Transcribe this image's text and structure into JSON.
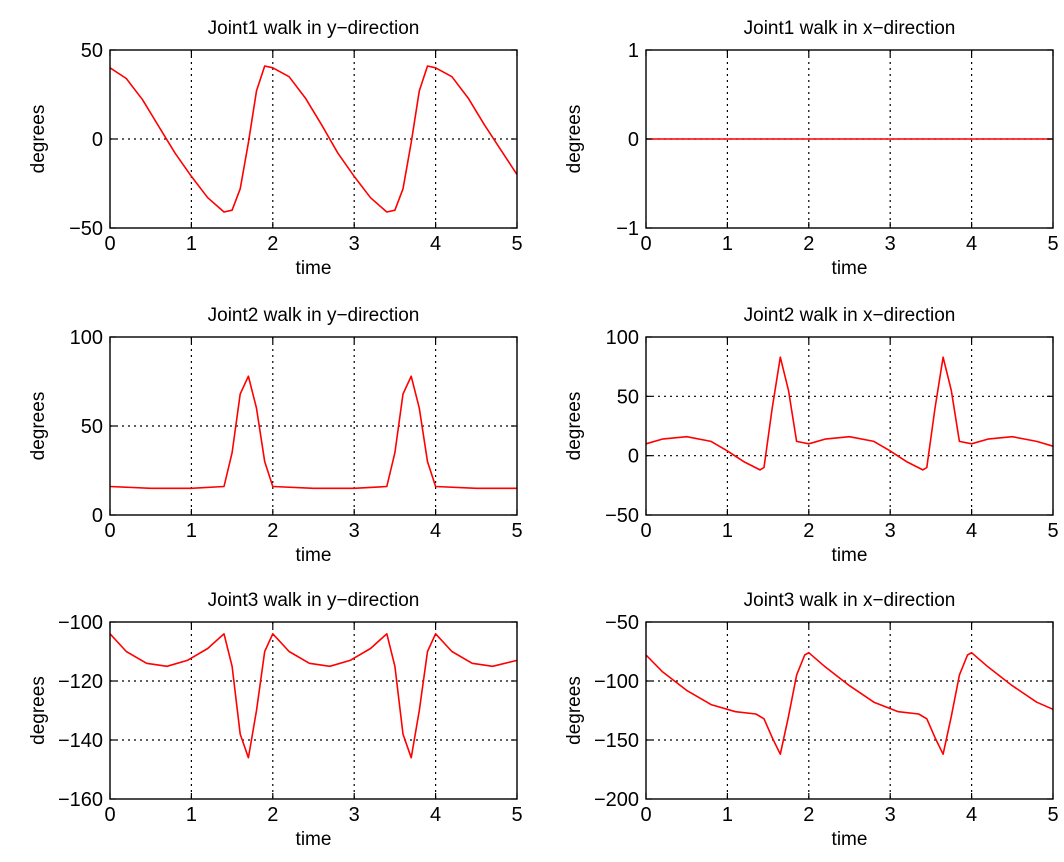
{
  "chart_data": [
    {
      "type": "line",
      "title": "Joint1 walk in y−direction",
      "xlabel": "time",
      "ylabel": "degrees",
      "xlim": [
        0,
        5
      ],
      "ylim": [
        -50,
        50
      ],
      "xticks": [
        "0",
        "1",
        "2",
        "3",
        "4",
        "5"
      ],
      "yticks": [
        "−50",
        "0",
        "50"
      ],
      "grid": true,
      "line_color": "#ff0000",
      "x": [
        0,
        0.2,
        0.4,
        0.6,
        0.8,
        1.0,
        1.2,
        1.4,
        1.5,
        1.6,
        1.7,
        1.8,
        1.9,
        2.0,
        2.2,
        2.4,
        2.6,
        2.8,
        3.0,
        3.2,
        3.4,
        3.5,
        3.6,
        3.7,
        3.8,
        3.9,
        4.0,
        4.2,
        4.4,
        4.6,
        4.8,
        5.0
      ],
      "y": [
        40,
        34,
        22,
        7,
        -8,
        -21,
        -33,
        -41,
        -40,
        -28,
        -2,
        27,
        41,
        40,
        35,
        23,
        8,
        -8,
        -21,
        -33,
        -41,
        -40,
        -28,
        -2,
        27,
        41,
        40,
        35,
        23,
        8,
        -6,
        -20
      ]
    },
    {
      "type": "line",
      "title": "Joint1 walk in x−direction",
      "xlabel": "time",
      "ylabel": "degrees",
      "xlim": [
        0,
        5
      ],
      "ylim": [
        -1,
        1
      ],
      "xticks": [
        "0",
        "1",
        "2",
        "3",
        "4",
        "5"
      ],
      "yticks": [
        "−1",
        "0",
        "1"
      ],
      "grid": true,
      "line_color": "#ff0000",
      "x": [
        0,
        5
      ],
      "y": [
        0,
        0
      ]
    },
    {
      "type": "line",
      "title": "Joint2 walk in y−direction",
      "xlabel": "time",
      "ylabel": "degrees",
      "xlim": [
        0,
        5
      ],
      "ylim": [
        0,
        100
      ],
      "xticks": [
        "0",
        "1",
        "2",
        "3",
        "4",
        "5"
      ],
      "yticks": [
        "0",
        "50",
        "100"
      ],
      "grid": true,
      "line_color": "#ff0000",
      "x": [
        0,
        0.5,
        1.0,
        1.4,
        1.5,
        1.6,
        1.7,
        1.8,
        1.9,
        2.0,
        2.5,
        3.0,
        3.4,
        3.5,
        3.6,
        3.7,
        3.8,
        3.9,
        4.0,
        4.5,
        5.0
      ],
      "y": [
        16,
        15,
        15,
        16,
        35,
        68,
        78,
        60,
        30,
        16,
        15,
        15,
        16,
        35,
        68,
        78,
        60,
        30,
        16,
        15,
        15
      ]
    },
    {
      "type": "line",
      "title": "Joint2 walk in x−direction",
      "xlabel": "time",
      "ylabel": "degrees",
      "xlim": [
        0,
        5
      ],
      "ylim": [
        -50,
        100
      ],
      "xticks": [
        "0",
        "1",
        "2",
        "3",
        "4",
        "5"
      ],
      "yticks": [
        "−50",
        "0",
        "50",
        "100"
      ],
      "grid": true,
      "line_color": "#ff0000",
      "x": [
        0,
        0.2,
        0.5,
        0.8,
        1.0,
        1.2,
        1.4,
        1.45,
        1.55,
        1.65,
        1.75,
        1.85,
        2.0,
        2.2,
        2.5,
        2.8,
        3.0,
        3.2,
        3.4,
        3.45,
        3.55,
        3.65,
        3.75,
        3.85,
        4.0,
        4.2,
        4.5,
        4.8,
        5.0
      ],
      "y": [
        10,
        14,
        16,
        12,
        4,
        -5,
        -12,
        -10,
        40,
        83,
        55,
        12,
        10,
        14,
        16,
        12,
        4,
        -5,
        -12,
        -10,
        40,
        83,
        55,
        12,
        10,
        14,
        16,
        12,
        8
      ]
    },
    {
      "type": "line",
      "title": "Joint3 walk in y−direction",
      "xlabel": "time",
      "ylabel": "degrees",
      "xlim": [
        0,
        5
      ],
      "ylim": [
        -160,
        -100
      ],
      "xticks": [
        "0",
        "1",
        "2",
        "3",
        "4",
        "5"
      ],
      "yticks": [
        "−160",
        "−140",
        "−120",
        "−100"
      ],
      "grid": true,
      "line_color": "#ff0000",
      "x": [
        0,
        0.2,
        0.45,
        0.7,
        0.95,
        1.2,
        1.4,
        1.5,
        1.6,
        1.7,
        1.8,
        1.9,
        2.0,
        2.2,
        2.45,
        2.7,
        2.95,
        3.2,
        3.4,
        3.5,
        3.6,
        3.7,
        3.8,
        3.9,
        4.0,
        4.2,
        4.45,
        4.7,
        5.0
      ],
      "y": [
        -104,
        -110,
        -114,
        -115,
        -113,
        -109,
        -104,
        -115,
        -138,
        -146,
        -130,
        -110,
        -104,
        -110,
        -114,
        -115,
        -113,
        -109,
        -104,
        -115,
        -138,
        -146,
        -130,
        -110,
        -104,
        -110,
        -114,
        -115,
        -113
      ]
    },
    {
      "type": "line",
      "title": "Joint3 walk in x−direction",
      "xlabel": "time",
      "ylabel": "degrees",
      "xlim": [
        0,
        5
      ],
      "ylim": [
        -200,
        -50
      ],
      "xticks": [
        "0",
        "1",
        "2",
        "3",
        "4",
        "5"
      ],
      "yticks": [
        "−200",
        "−150",
        "−100",
        "−50"
      ],
      "grid": true,
      "line_color": "#ff0000",
      "x": [
        0,
        0.2,
        0.5,
        0.8,
        1.1,
        1.35,
        1.45,
        1.55,
        1.65,
        1.75,
        1.85,
        1.95,
        2.0,
        2.2,
        2.5,
        2.8,
        3.1,
        3.35,
        3.45,
        3.55,
        3.65,
        3.75,
        3.85,
        3.95,
        4.0,
        4.2,
        4.5,
        4.8,
        5.0
      ],
      "y": [
        -78,
        -92,
        -108,
        -120,
        -126,
        -128,
        -132,
        -148,
        -162,
        -130,
        -95,
        -78,
        -76,
        -88,
        -104,
        -118,
        -126,
        -128,
        -132,
        -148,
        -162,
        -130,
        -95,
        -78,
        -76,
        -88,
        -104,
        -118,
        -124
      ]
    }
  ]
}
